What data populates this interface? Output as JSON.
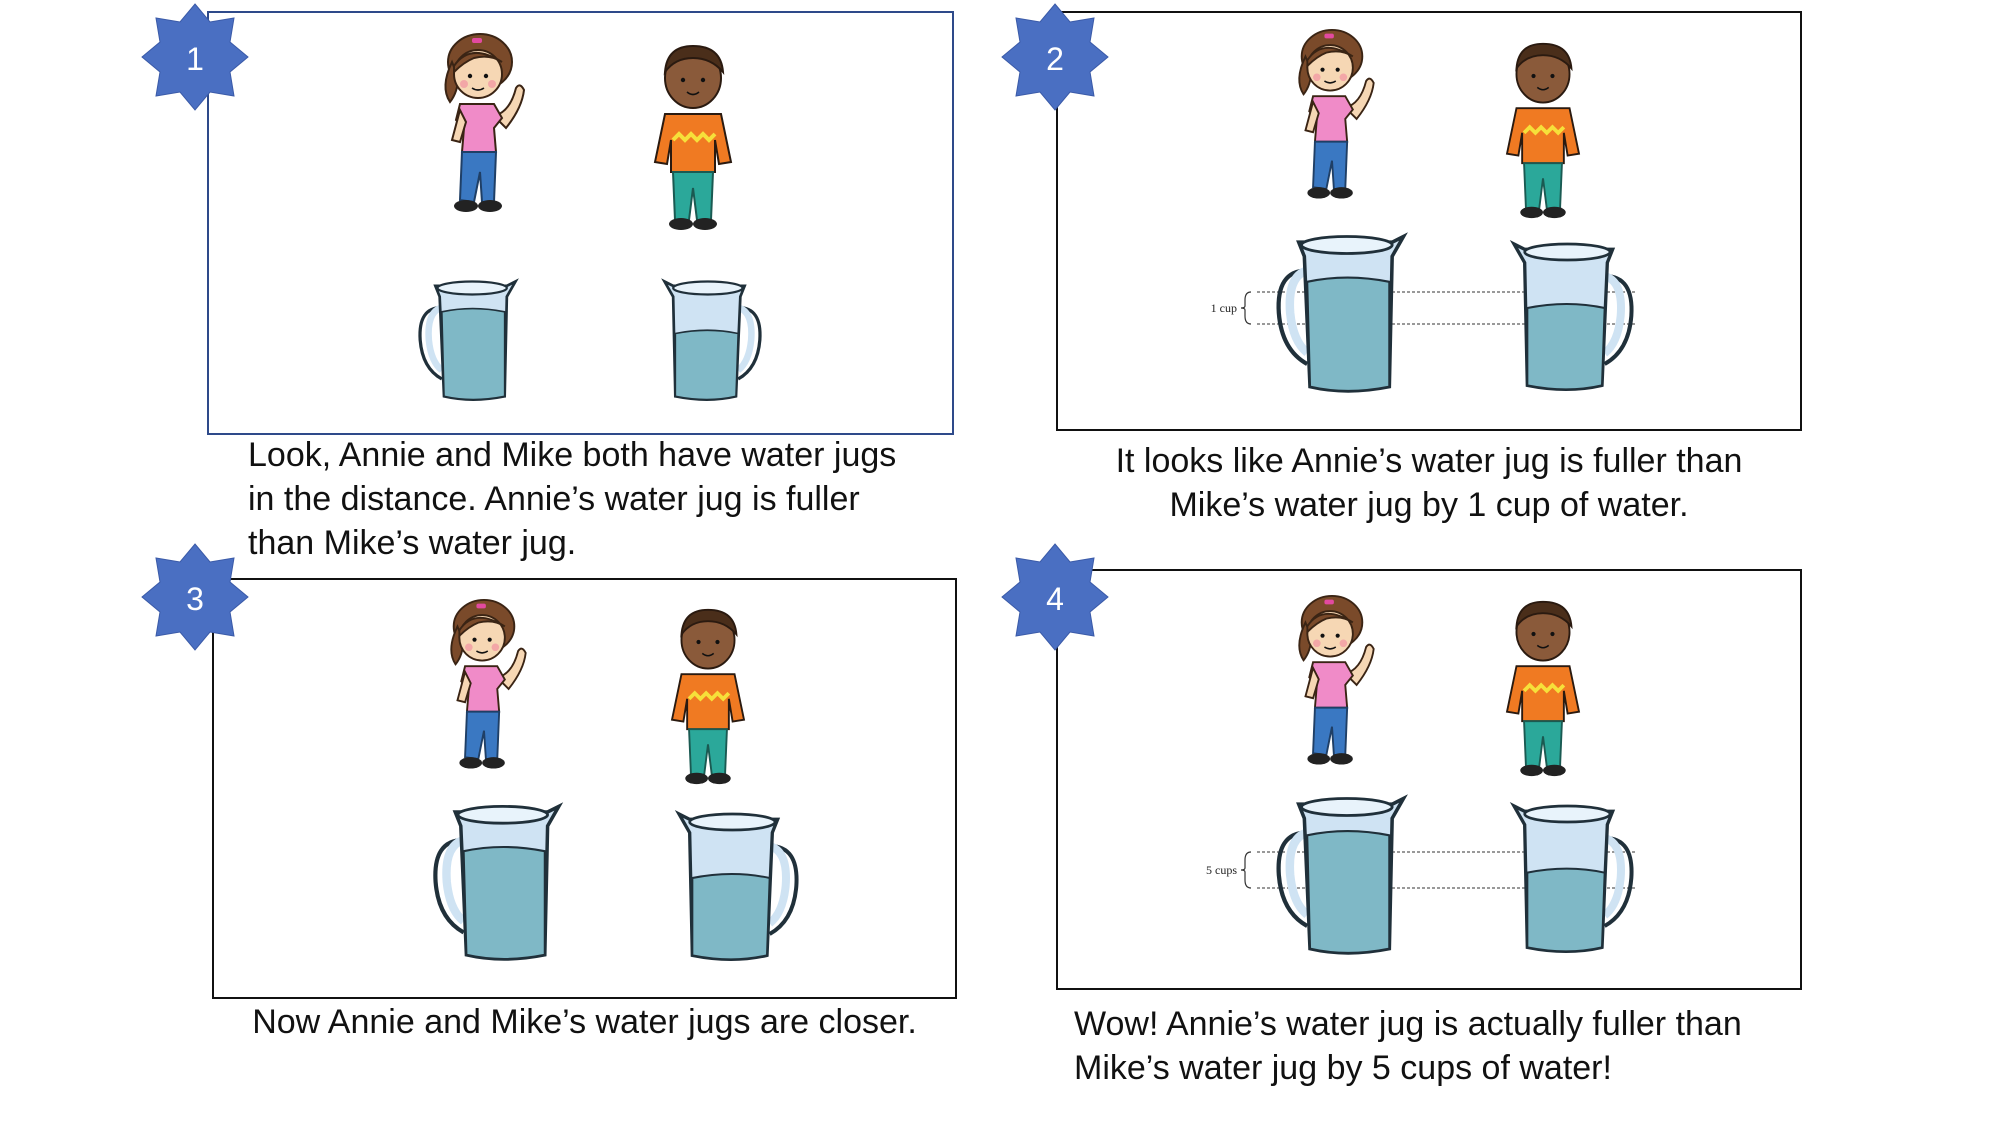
{
  "panels": [
    {
      "number": "1",
      "caption_lines": [
        "Look, Annie and Mike both have water jugs",
        "in the distance. Annie’s water jug is fuller",
        "than Mike’s water jug."
      ],
      "measure_label": null
    },
    {
      "number": "2",
      "caption_lines": [
        "It looks like Annie’s water jug is fuller than",
        "Mike’s water jug by 1 cup of water."
      ],
      "measure_label": "1 cup"
    },
    {
      "number": "3",
      "caption_lines": [
        "Now Annie and Mike’s water jugs are closer."
      ],
      "measure_label": null
    },
    {
      "number": "4",
      "caption_lines": [
        "Wow! Annie’s water jug is actually fuller than",
        "Mike’s water jug by 5 cups of water!"
      ],
      "measure_label": "5 cups"
    }
  ],
  "colors": {
    "badge": "#4a6fc2",
    "water": "#7fb8c6",
    "jug": "#cfe3f3",
    "jug_outline": "#20303a",
    "frame_panel1": "#2e4a8a",
    "frame_default": "#111111"
  },
  "icons": {
    "badge": "eight-point-star-badge",
    "girl": "girl-annie-figure",
    "boy": "boy-mike-figure",
    "jug": "water-jug-icon"
  }
}
